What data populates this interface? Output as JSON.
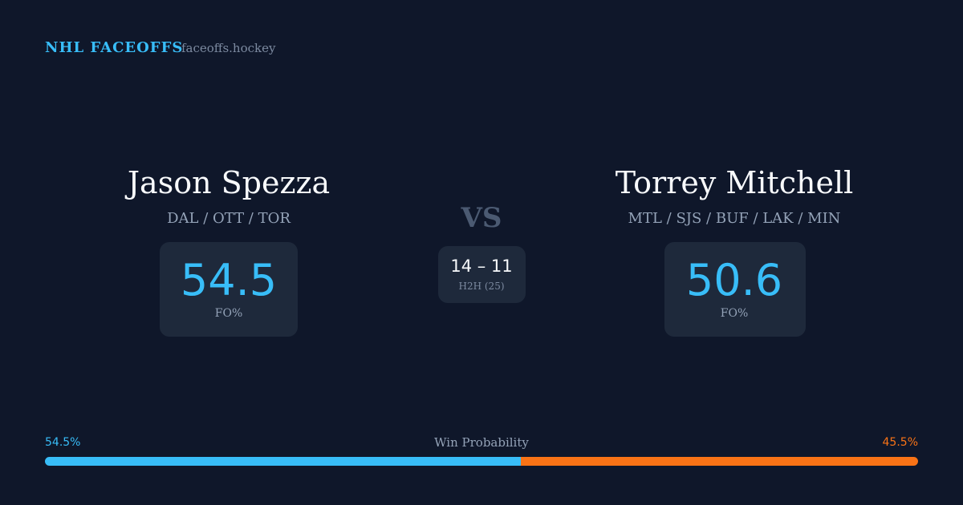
{
  "header": {
    "title": "NHL FACEOFFS",
    "site": "faceoffs.hockey"
  },
  "players": [
    {
      "name": "Jason Spezza",
      "teams": "DAL / OTT / TOR",
      "fo_pct": 54.5,
      "fo_label": "FO%"
    },
    {
      "name": "Torrey Mitchell",
      "teams": "MTL / SJS / BUF / LAK / MIN",
      "fo_pct": 50.6,
      "fo_label": "FO%"
    }
  ],
  "versus": "VS",
  "h2h": {
    "score": "14 – 11",
    "label": "H2H (25)"
  },
  "win_probability": {
    "label": "Win Probability",
    "left": {
      "value": 54.5,
      "label": "54.5%",
      "color": "#38bdf8"
    },
    "right": {
      "value": 45.5,
      "label": "45.5%",
      "color": "#f97316"
    }
  }
}
